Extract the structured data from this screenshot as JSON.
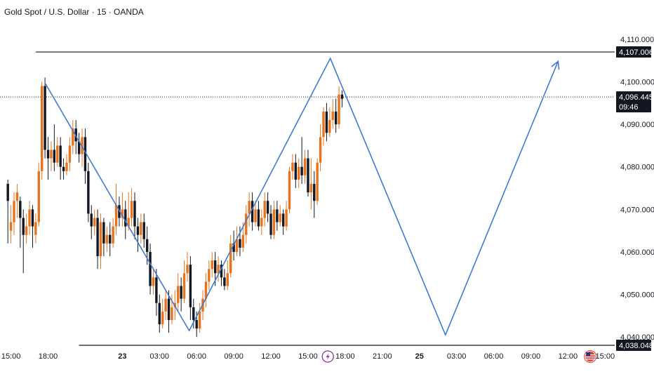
{
  "header": {
    "title": "Gold Spot / U.S. Dollar · 15 · OANDA"
  },
  "colors": {
    "up": "#e8731f",
    "down": "#131722",
    "projection": "#3e7bd6",
    "level": "#131722",
    "price_badge": "#131722",
    "event_lightning": "#9c27b0",
    "event_flag": "#e53935"
  },
  "chart_data": {
    "type": "candlestick",
    "symbol": "Gold Spot / U.S. Dollar",
    "interval": "15",
    "source": "OANDA",
    "ylim": [
      4036.5,
      4115
    ],
    "y_ticks": [
      4040,
      4050,
      4060,
      4070,
      4080,
      4090,
      4100,
      4110
    ],
    "y_tick_labels": [
      "4,040.000",
      "4,050.000",
      "4,060.000",
      "4,070.000",
      "4,080.000",
      "4,090.000",
      "4,100.000",
      "4,110.000"
    ],
    "x_ticks": [
      {
        "t": 0,
        "label": "15:00",
        "bold": false
      },
      {
        "t": 3,
        "label": "18:00",
        "bold": false
      },
      {
        "t": 9,
        "label": "23",
        "bold": true
      },
      {
        "t": 12,
        "label": "03:00",
        "bold": false
      },
      {
        "t": 15,
        "label": "06:00",
        "bold": false
      },
      {
        "t": 18,
        "label": "09:00",
        "bold": false
      },
      {
        "t": 21,
        "label": "12:00",
        "bold": false
      },
      {
        "t": 24,
        "label": "15:00",
        "bold": false
      },
      {
        "t": 27,
        "label": "18:00",
        "bold": false
      },
      {
        "t": 30,
        "label": "21:00",
        "bold": false
      },
      {
        "t": 33,
        "label": "25",
        "bold": true
      },
      {
        "t": 36,
        "label": "03:00",
        "bold": false
      },
      {
        "t": 39,
        "label": "06:00",
        "bold": false
      },
      {
        "t": 42,
        "label": "09:00",
        "bold": false
      },
      {
        "t": 45,
        "label": "12:00",
        "bold": false
      },
      {
        "t": 48,
        "label": "15:00",
        "bold": false
      }
    ],
    "levels": [
      {
        "value": 4107.006,
        "label": "4,107.006",
        "t_start": 2
      },
      {
        "value": 4038.048,
        "label": "4,038.048",
        "t_start": 5.5
      }
    ],
    "current_price": {
      "value": 4096.445,
      "label": "4,096.445",
      "countdown": "09:46"
    },
    "projection_path": [
      {
        "t": 2.8,
        "y": 4099.5
      },
      {
        "t": 14.4,
        "y": 4041.5
      },
      {
        "t": 25.8,
        "y": 4105.5
      },
      {
        "t": 35.1,
        "y": 4040.5
      },
      {
        "t": 44.2,
        "y": 4104.8
      }
    ],
    "events": [
      {
        "type": "lightning",
        "t": 25.6
      },
      {
        "type": "us-flag",
        "t": 46.8
      }
    ],
    "candles": [
      [
        -0.25,
        4076,
        4072,
        4077,
        4062
      ],
      [
        0,
        4065,
        4067,
        4071,
        4062
      ],
      [
        0.25,
        4067,
        4072,
        4074,
        4064
      ],
      [
        0.5,
        4072,
        4074,
        4076,
        4068
      ],
      [
        0.75,
        4072,
        4068,
        4073,
        4061
      ],
      [
        1,
        4068,
        4064,
        4070,
        4055
      ],
      [
        1.25,
        4064,
        4066,
        4069,
        4062
      ],
      [
        1.5,
        4066,
        4070,
        4072,
        4064
      ],
      [
        1.75,
        4070,
        4066,
        4071,
        4061
      ],
      [
        2,
        4064,
        4067,
        4069,
        4062
      ],
      [
        2.25,
        4067,
        4079,
        4081,
        4066
      ],
      [
        2.5,
        4079,
        4099,
        4100,
        4077
      ],
      [
        2.75,
        4099,
        4084,
        4101,
        4082
      ],
      [
        3,
        4084,
        4082,
        4087,
        4077
      ],
      [
        3.25,
        4082,
        4084,
        4086,
        4079
      ],
      [
        3.5,
        4084,
        4081,
        4090,
        4079
      ],
      [
        3.75,
        4081,
        4085,
        4087,
        4080
      ],
      [
        4,
        4085,
        4080,
        4087,
        4077
      ],
      [
        4.25,
        4080,
        4079,
        4082,
        4077
      ],
      [
        4.5,
        4079,
        4081,
        4083,
        4078
      ],
      [
        4.75,
        4081,
        4085,
        4087,
        4079
      ],
      [
        5,
        4085,
        4089,
        4091,
        4083
      ],
      [
        5.25,
        4089,
        4086,
        4091,
        4083
      ],
      [
        5.5,
        4086,
        4083,
        4088,
        4081
      ],
      [
        5.75,
        4083,
        4087,
        4089,
        4080
      ],
      [
        6,
        4087,
        4079,
        4089,
        4076
      ],
      [
        6.25,
        4079,
        4069,
        4081,
        4067
      ],
      [
        6.5,
        4069,
        4066,
        4071,
        4063
      ],
      [
        6.75,
        4066,
        4068,
        4070,
        4064
      ],
      [
        7,
        4068,
        4059,
        4070,
        4056
      ],
      [
        7.25,
        4059,
        4067,
        4069,
        4056
      ],
      [
        7.5,
        4067,
        4062,
        4068,
        4059
      ],
      [
        7.75,
        4062,
        4064,
        4066,
        4060
      ],
      [
        8,
        4064,
        4062,
        4067,
        4059
      ],
      [
        8.25,
        4062,
        4066,
        4068,
        4061
      ],
      [
        8.5,
        4066,
        4071,
        4076,
        4064
      ],
      [
        8.75,
        4071,
        4068,
        4073,
        4066
      ],
      [
        9,
        4068,
        4070,
        4074,
        4066
      ],
      [
        9.25,
        4070,
        4066,
        4072,
        4063
      ],
      [
        9.5,
        4066,
        4068,
        4074,
        4065
      ],
      [
        9.75,
        4068,
        4072,
        4075,
        4066
      ],
      [
        10,
        4072,
        4066,
        4074,
        4063
      ],
      [
        10.25,
        4066,
        4064,
        4068,
        4060
      ],
      [
        10.5,
        4064,
        4067,
        4069,
        4062
      ],
      [
        10.75,
        4067,
        4063,
        4069,
        4061
      ],
      [
        11,
        4063,
        4060,
        4066,
        4057
      ],
      [
        11.25,
        4060,
        4052,
        4062,
        4050
      ],
      [
        11.5,
        4052,
        4054,
        4056,
        4050
      ],
      [
        11.75,
        4054,
        4048,
        4056,
        4045
      ],
      [
        12,
        4048,
        4043,
        4050,
        4041
      ],
      [
        12.25,
        4043,
        4046,
        4049,
        4042
      ],
      [
        12.5,
        4046,
        4049,
        4051,
        4044
      ],
      [
        12.75,
        4049,
        4044,
        4051,
        4041
      ],
      [
        13,
        4044,
        4047,
        4050,
        4043
      ],
      [
        13.25,
        4047,
        4048,
        4051,
        4044
      ],
      [
        13.5,
        4048,
        4052,
        4055,
        4046
      ],
      [
        13.75,
        4052,
        4049,
        4054,
        4046
      ],
      [
        14,
        4049,
        4055,
        4058,
        4048
      ],
      [
        14.25,
        4055,
        4057,
        4060,
        4053
      ],
      [
        14.5,
        4057,
        4047,
        4059,
        4044
      ],
      [
        14.75,
        4047,
        4044,
        4049,
        4042
      ],
      [
        15,
        4044,
        4042,
        4046,
        4040
      ],
      [
        15.25,
        4042,
        4046,
        4048,
        4041
      ],
      [
        15.5,
        4046,
        4049,
        4051,
        4044
      ],
      [
        15.75,
        4049,
        4053,
        4055,
        4047
      ],
      [
        16,
        4053,
        4056,
        4058,
        4051
      ],
      [
        16.25,
        4056,
        4058,
        4060,
        4054
      ],
      [
        16.5,
        4058,
        4055,
        4060,
        4052
      ],
      [
        16.75,
        4055,
        4057,
        4059,
        4053
      ],
      [
        17,
        4057,
        4054,
        4058,
        4052
      ],
      [
        17.25,
        4054,
        4052,
        4056,
        4051
      ],
      [
        17.5,
        4052,
        4055,
        4058,
        4051
      ],
      [
        17.75,
        4055,
        4062,
        4064,
        4054
      ],
      [
        18,
        4062,
        4060,
        4065,
        4058
      ],
      [
        18.25,
        4060,
        4063,
        4066,
        4059
      ],
      [
        18.5,
        4063,
        4061,
        4066,
        4059
      ],
      [
        18.75,
        4061,
        4064,
        4067,
        4060
      ],
      [
        19,
        4064,
        4069,
        4071,
        4062
      ],
      [
        19.25,
        4069,
        4072,
        4074,
        4066
      ],
      [
        19.5,
        4072,
        4067,
        4074,
        4065
      ],
      [
        19.75,
        4067,
        4070,
        4072,
        4066
      ],
      [
        20,
        4070,
        4066,
        4072,
        4065
      ],
      [
        20.25,
        4066,
        4068,
        4070,
        4064
      ],
      [
        20.5,
        4068,
        4072,
        4074,
        4066
      ],
      [
        20.75,
        4072,
        4069,
        4074,
        4067
      ],
      [
        21,
        4069,
        4064,
        4071,
        4063
      ],
      [
        21.25,
        4064,
        4070,
        4072,
        4063
      ],
      [
        21.5,
        4070,
        4067,
        4072,
        4065
      ],
      [
        21.75,
        4067,
        4069,
        4071,
        4066
      ],
      [
        22,
        4069,
        4066,
        4070,
        4064
      ],
      [
        22.25,
        4066,
        4070,
        4072,
        4065
      ],
      [
        22.5,
        4070,
        4079,
        4080,
        4069
      ],
      [
        22.75,
        4079,
        4081,
        4083,
        4077
      ],
      [
        23,
        4081,
        4077,
        4083,
        4075
      ],
      [
        23.25,
        4077,
        4080,
        4082,
        4075
      ],
      [
        23.5,
        4080,
        4078,
        4087,
        4076
      ],
      [
        23.75,
        4078,
        4082,
        4084,
        4076
      ],
      [
        24,
        4082,
        4074,
        4084,
        4073
      ],
      [
        24.25,
        4074,
        4076,
        4082,
        4070
      ],
      [
        24.5,
        4076,
        4072,
        4079,
        4068
      ],
      [
        24.75,
        4072,
        4081,
        4082,
        4071
      ],
      [
        25,
        4081,
        4087,
        4090,
        4079
      ],
      [
        25.25,
        4087,
        4093,
        4094,
        4085
      ],
      [
        25.5,
        4093,
        4088,
        4095,
        4086
      ],
      [
        25.75,
        4088,
        4091,
        4094,
        4087
      ],
      [
        26,
        4091,
        4093,
        4096,
        4089
      ],
      [
        26.25,
        4093,
        4090,
        4096,
        4088
      ],
      [
        26.5,
        4090,
        4097,
        4099,
        4089
      ],
      [
        26.75,
        4097,
        4096,
        4098,
        4094
      ]
    ]
  }
}
